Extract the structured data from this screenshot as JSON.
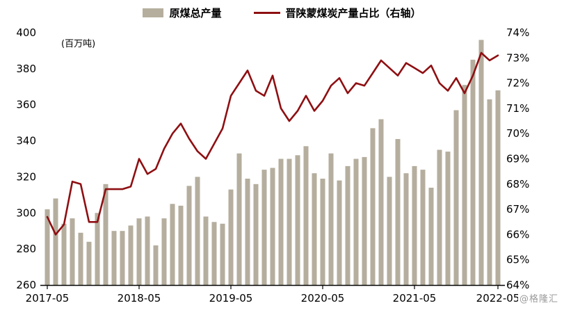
{
  "legend": [
    {
      "label": "原煤总产量",
      "type": "bar",
      "color": "#b5ae9e"
    },
    {
      "label": "晋陕蒙煤炭产量占比（右轴）",
      "type": "line",
      "color": "#8e0f12"
    }
  ],
  "unit_label": "(百万吨)",
  "watermark": "@格隆汇",
  "chart_data": {
    "type": "bar",
    "title": "",
    "grid": false,
    "legend_position": "top",
    "categories": [
      "2017-05",
      "2017-06",
      "2017-07",
      "2017-08",
      "2017-09",
      "2017-10",
      "2017-11",
      "2017-12",
      "2018-01",
      "2018-03",
      "2018-04",
      "2018-05",
      "2018-06",
      "2018-07",
      "2018-08",
      "2018-09",
      "2018-10",
      "2018-11",
      "2018-12",
      "2019-01",
      "2019-03",
      "2019-04",
      "2019-05",
      "2019-06",
      "2019-07",
      "2019-08",
      "2019-09",
      "2019-10",
      "2019-11",
      "2019-12",
      "2020-01",
      "2020-03",
      "2020-04",
      "2020-05",
      "2020-06",
      "2020-07",
      "2020-08",
      "2020-09",
      "2020-10",
      "2020-11",
      "2020-12",
      "2021-01",
      "2021-03",
      "2021-04",
      "2021-05",
      "2021-06",
      "2021-07",
      "2021-08",
      "2021-09",
      "2021-10",
      "2021-11",
      "2021-12",
      "2022-03",
      "2022-04",
      "2022-05"
    ],
    "series": [
      {
        "name": "原煤总产量",
        "type": "bar",
        "axis": "left",
        "color": "#b5ae9e",
        "values": [
          302,
          308,
          294,
          297,
          289,
          284,
          300,
          316,
          290,
          290,
          293,
          297,
          298,
          282,
          297,
          305,
          304,
          315,
          320,
          298,
          295,
          294,
          313,
          333,
          319,
          316,
          324,
          325,
          330,
          330,
          332,
          337,
          322,
          319,
          333,
          318,
          326,
          330,
          331,
          347,
          352,
          320,
          341,
          322,
          326,
          324,
          314,
          335,
          334,
          357,
          371,
          385,
          396,
          363,
          368
        ]
      },
      {
        "name": "晋陕蒙煤炭产量占比（右轴）",
        "type": "line",
        "axis": "right",
        "color": "#8e0f12",
        "values": [
          66.7,
          66.0,
          66.4,
          68.1,
          68.0,
          66.5,
          66.5,
          67.8,
          67.8,
          67.8,
          67.9,
          69.0,
          68.4,
          68.6,
          69.4,
          70.0,
          70.4,
          69.8,
          69.3,
          69.0,
          69.6,
          70.2,
          71.5,
          72.0,
          72.5,
          71.7,
          71.5,
          72.3,
          71.0,
          70.5,
          70.9,
          71.5,
          70.9,
          71.3,
          71.9,
          72.2,
          71.6,
          72.0,
          71.9,
          72.4,
          72.9,
          72.6,
          72.3,
          72.8,
          72.6,
          72.4,
          72.7,
          72.0,
          71.7,
          72.2,
          71.6,
          72.3,
          73.2,
          72.9,
          73.1
        ]
      }
    ],
    "left_axis": {
      "label": "(百万吨)",
      "min": 260,
      "max": 400,
      "step": 20,
      "ticks": [
        "400",
        "380",
        "360",
        "340",
        "320",
        "300",
        "280",
        "260"
      ]
    },
    "right_axis": {
      "min": 64,
      "max": 74,
      "step": 1,
      "ticks": [
        "74%",
        "73%",
        "72%",
        "71%",
        "70%",
        "69%",
        "68%",
        "67%",
        "66%",
        "65%",
        "64%"
      ]
    },
    "x_ticks": [
      "2017-05",
      "2018-05",
      "2019-05",
      "2020-05",
      "2021-05",
      "2022-05"
    ]
  }
}
